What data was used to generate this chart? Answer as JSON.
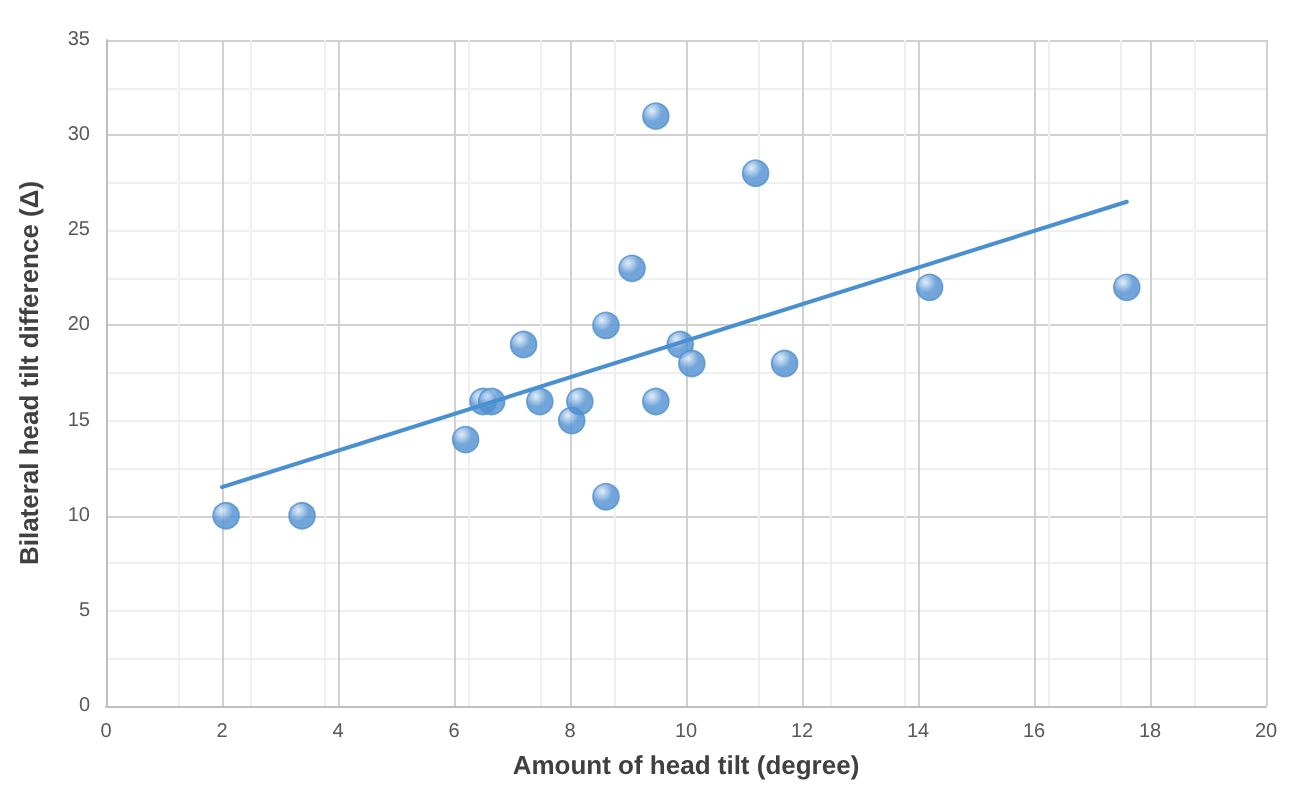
{
  "chart_data": {
    "type": "scatter",
    "xlabel": "Amount of head tilt (degree)",
    "ylabel": "Bilateral head tilt difference (Δ)",
    "xlim": [
      0,
      20
    ],
    "xticks": [
      0,
      2,
      4,
      6,
      8,
      10,
      12,
      14,
      16,
      18,
      20
    ],
    "ylim": [
      0,
      35
    ],
    "yticks": [
      0,
      5,
      10,
      15,
      20,
      25,
      30,
      35
    ],
    "grid": true,
    "marker": "circle",
    "series": [
      {
        "color": "#4f8fd0",
        "x": [
          2.07,
          3.38,
          6.2,
          6.5,
          6.65,
          7.2,
          7.48,
          8.03,
          8.17,
          8.62,
          8.62,
          9.07,
          9.48,
          9.48,
          9.9,
          10.1,
          11.2,
          11.7,
          14.2,
          17.6
        ],
        "values": [
          10,
          10,
          14,
          16,
          16,
          19,
          16,
          15,
          16,
          20,
          11,
          23,
          31,
          16,
          19,
          18,
          28,
          18,
          22,
          22
        ]
      },
      {
        "type": "line",
        "color": "#4a90d0",
        "marker": "none",
        "line_style": "solid",
        "x": [
          2,
          17.6
        ],
        "values": [
          11.5,
          26.5
        ]
      }
    ]
  }
}
